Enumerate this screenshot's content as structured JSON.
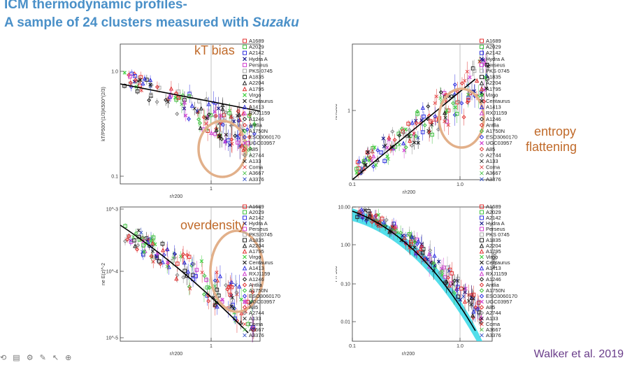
{
  "slide": {
    "title_line1": "ICM thermodynamic profiles-",
    "title_line2_prefix": "A sample of 24 clusters measured with ",
    "title_line2_italic": "Suzaku",
    "credit": "Walker et al. 2019",
    "toolbar": "⟲ ▤ ⚙ ✎ ↖ ⊕"
  },
  "annotations": {
    "kT": "kT bias",
    "entropy1": "entropy",
    "entropy2": "flattening",
    "overdensity": "overdensity"
  },
  "legend": [
    {
      "label": "A1689",
      "color": "#e03030",
      "sym": "square"
    },
    {
      "label": "A2029",
      "color": "#40c040",
      "sym": "square"
    },
    {
      "label": "A2142",
      "color": "#3030e0",
      "sym": "square"
    },
    {
      "label": "Hydra A",
      "color": "#1a1a8a",
      "sym": "x"
    },
    {
      "label": "Perseus",
      "color": "#d040d0",
      "sym": "square"
    },
    {
      "label": "PKS 0745",
      "color": "#aaaaaa",
      "sym": "square"
    },
    {
      "label": "A1835",
      "color": "#222222",
      "sym": "square"
    },
    {
      "label": "A2204",
      "color": "#222222",
      "sym": "tri"
    },
    {
      "label": "A1795",
      "color": "#e03030",
      "sym": "tri"
    },
    {
      "label": "Virgo",
      "color": "#40d040",
      "sym": "x"
    },
    {
      "label": "Centaurus",
      "color": "#222222",
      "sym": "x"
    },
    {
      "label": "A1413",
      "color": "#3030e0",
      "sym": "tri"
    },
    {
      "label": "RXJ1159",
      "color": "#d040d0",
      "sym": "tri"
    },
    {
      "label": "A1246",
      "color": "#222222",
      "sym": "diamond"
    },
    {
      "label": "Antlia",
      "color": "#e03030",
      "sym": "diamond"
    },
    {
      "label": "A1750N",
      "color": "#40c040",
      "sym": "diamond"
    },
    {
      "label": "ESO3060170",
      "color": "#3030e0",
      "sym": "diamond"
    },
    {
      "label": "UGC03957",
      "color": "#d040d0",
      "sym": "x"
    },
    {
      "label": "A85",
      "color": "#e03030",
      "sym": "diamond"
    },
    {
      "label": "A2744",
      "color": "#888888",
      "sym": "diamond"
    },
    {
      "label": "A133",
      "color": "#111111",
      "sym": "bow"
    },
    {
      "label": "Coma",
      "color": "#e03030",
      "sym": "bow"
    },
    {
      "label": "A3667",
      "color": "#40c040",
      "sym": "bow"
    },
    {
      "label": "A3376",
      "color": "#2040c0",
      "sym": "bow"
    }
  ],
  "panels": {
    "kT": {
      "ylabel": "kT/P500^(1/3)K500^(2/3)",
      "xlabel": "r/r200",
      "yticks": [
        "1.0",
        "0.1"
      ],
      "xticks": [
        "1"
      ]
    },
    "entropy": {
      "ylabel": "K/K500",
      "xlabel": "r/r200",
      "yticks": [
        "1"
      ],
      "xticks": [
        "0.1",
        "1.0"
      ]
    },
    "density": {
      "ylabel": "ne E(z)^-2",
      "xlabel": "r/r200",
      "yticks": [
        "10^-3",
        "10^-4",
        "10^-5"
      ],
      "xticks": [
        "1"
      ]
    },
    "pressure": {
      "ylabel": "P/P500",
      "ylabel_right": "P/P500",
      "xlabel": "r/r200",
      "yticks": [
        "10.00",
        "1.00",
        "0.10",
        "0.01"
      ],
      "xticks": [
        "0.1",
        "1.0"
      ]
    }
  }
}
